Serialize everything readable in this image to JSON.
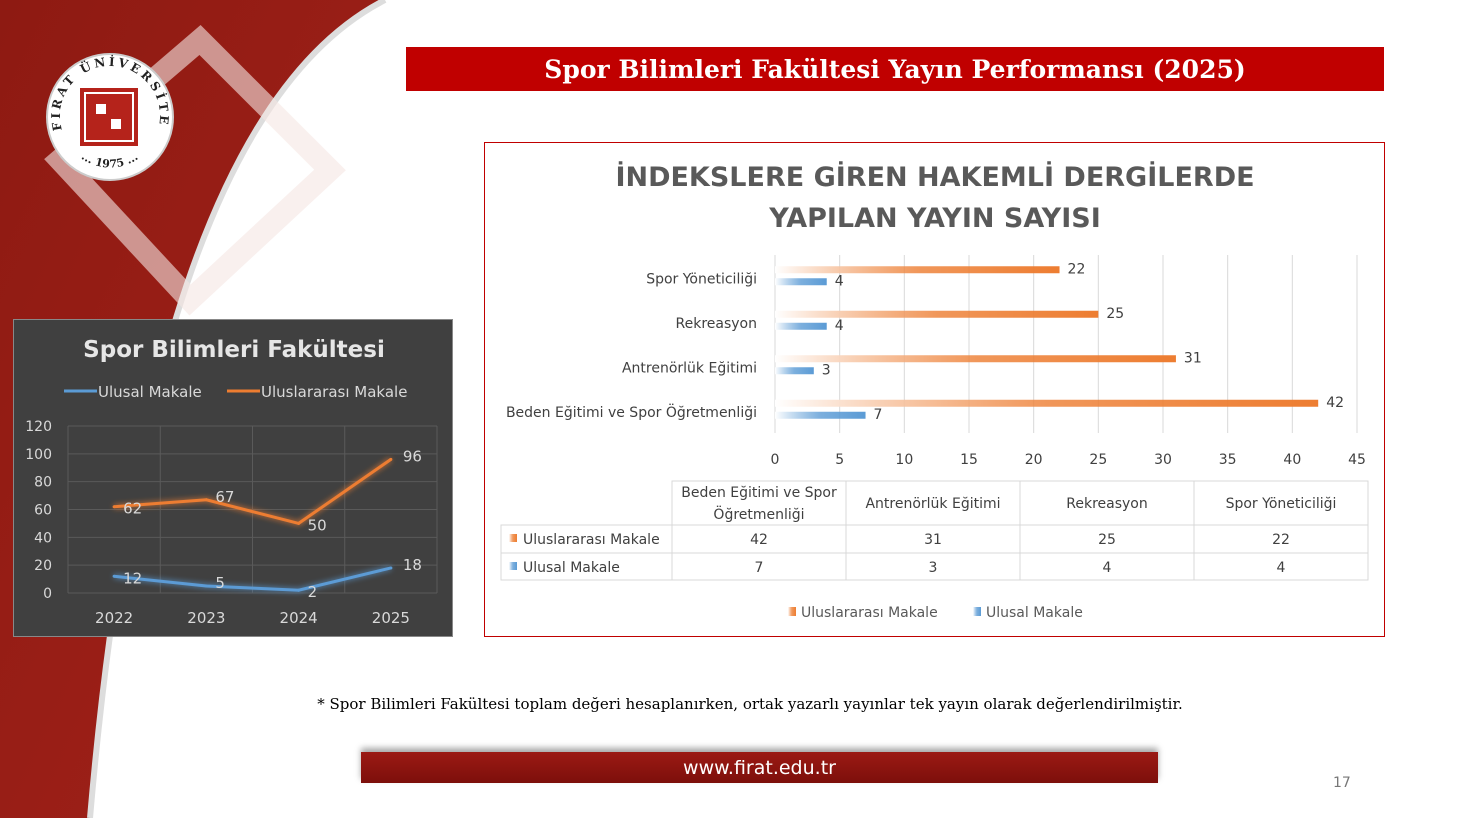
{
  "slide": {
    "title": "Spor Bilimleri Fakültesi Yayın Performansı (2025)",
    "footnote": "* Spor Bilimleri Fakültesi toplam değeri hesaplanırken, ortak yazarlı yayınlar tek yayın olarak değerlendirilmiştir.",
    "website": "www.firat.edu.tr",
    "page_number": "17",
    "logo_text_top": "FIRAT ÜNİVERSİTESİ",
    "logo_text_bottom": "... 1975 ..."
  },
  "colors": {
    "brand_red": "#c00000",
    "orange": "#ed7d31",
    "blue": "#5b9bd5"
  },
  "chart_data": [
    {
      "type": "line",
      "title": "Spor Bilimleri Fakültesi",
      "categories": [
        "2022",
        "2023",
        "2024",
        "2025"
      ],
      "series": [
        {
          "name": "Ulusal Makale",
          "values": [
            12,
            5,
            2,
            18
          ],
          "color": "#5b9bd5"
        },
        {
          "name": "Uluslararası Makale",
          "values": [
            62,
            67,
            50,
            96
          ],
          "color": "#ed7d31"
        }
      ],
      "ylim": [
        0,
        120
      ],
      "yticks": [
        0,
        20,
        40,
        60,
        80,
        100,
        120
      ],
      "grid": true,
      "legend": "top"
    },
    {
      "type": "bar",
      "orientation": "horizontal",
      "title_line1": "İNDEKSLERE GİREN HAKEMLİ DERGİLERDE",
      "title_line2": "YAPILAN YAYIN SAYISI",
      "categories": [
        "Beden Eğitimi ve Spor Öğretmenliği",
        "Antrenörlük Eğitimi",
        "Rekreasyon",
        "Spor Yöneticiliği"
      ],
      "table_header_cat1_line1": "Beden Eğitimi ve Spor",
      "table_header_cat1_line2": "Öğretmenliği",
      "series": [
        {
          "name": "Uluslararası Makale",
          "values": [
            42,
            31,
            25,
            22
          ],
          "color": "#ed7d31"
        },
        {
          "name": "Ulusal Makale",
          "values": [
            7,
            3,
            4,
            4
          ],
          "color": "#5b9bd5"
        }
      ],
      "xlim": [
        0,
        45
      ],
      "xticks": [
        0,
        5,
        10,
        15,
        20,
        25,
        30,
        35,
        40,
        45
      ],
      "grid": true,
      "legend": "bottom",
      "data_table": true
    }
  ]
}
